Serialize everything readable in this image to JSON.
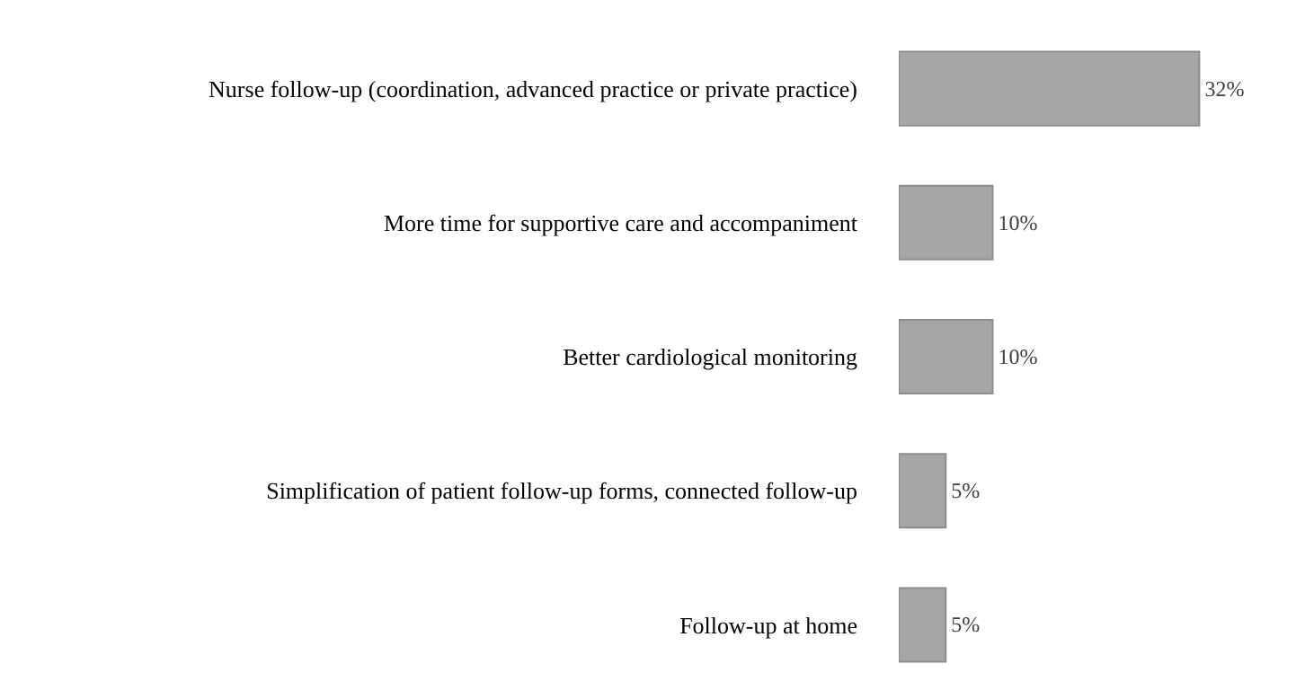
{
  "chart_data": {
    "type": "bar",
    "orientation": "horizontal",
    "categories": [
      "Nurse follow-up (coordination, advanced practice or private practice)",
      "More time for supportive care and accompaniment",
      "Better cardiological monitoring",
      "Simplification of patient follow-up forms, connected follow-up",
      "Follow-up at home"
    ],
    "values": [
      32,
      10,
      10,
      5,
      5
    ],
    "value_labels": [
      "32%",
      "10%",
      "10%",
      "5%",
      "5%"
    ],
    "color": "#a6a6a6"
  }
}
